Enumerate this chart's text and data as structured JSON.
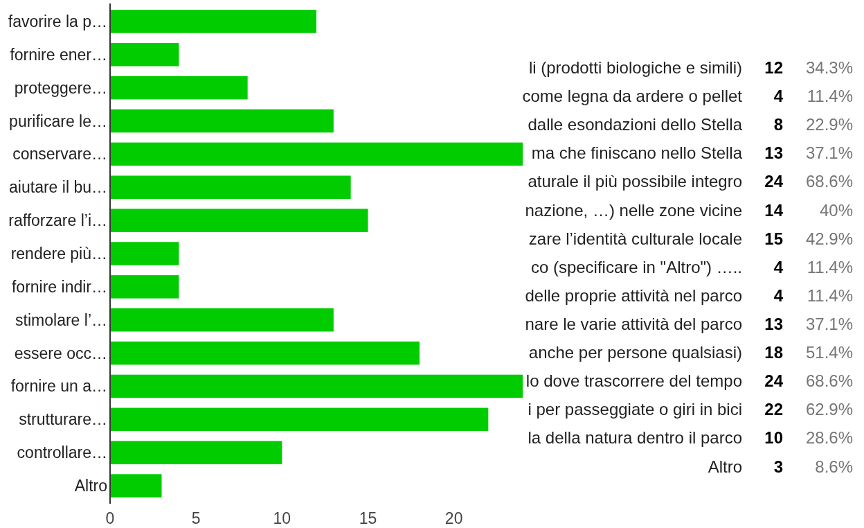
{
  "chart_data": [
    {
      "type": "bar",
      "orientation": "horizontal",
      "categories": [
        "favorire la p…",
        "fornire ener…",
        "proteggere…",
        "purificare le…",
        "conservare…",
        "aiutare il bu…",
        "rafforzare l’i…",
        "rendere più…",
        "fornire indir…",
        "stimolare l’…",
        "essere occ…",
        "fornire un a…",
        "strutturare…",
        "controllare…",
        "Altro"
      ],
      "values": [
        12,
        4,
        8,
        13,
        24,
        14,
        15,
        4,
        4,
        13,
        18,
        24,
        22,
        10,
        3
      ],
      "color": "#00cc00",
      "xlim": [
        0,
        24
      ],
      "xticks": [
        0,
        5,
        10,
        15,
        20
      ]
    },
    {
      "type": "other",
      "data_labels": true,
      "categories": [
        "li (prodotti biologiche e simili)",
        "come legna da ardere o pellet",
        "dalle esondazioni dello Stella",
        "ma che finiscano nello Stella",
        "aturale il più possibile integro",
        "nazione, …) nelle zone vicine",
        "zare l’identità culturale locale",
        "co (specificare in \"Altro\") …..",
        "delle proprie attività nel parco",
        "nare le varie attività del parco",
        "anche per persone qualsiasi)",
        "lo dove trascorrere del tempo",
        "i per passeggiate o giri in bici",
        "la della natura dentro il parco",
        "Altro"
      ],
      "series": [
        {
          "color": "#000000",
          "values": [
            12,
            4,
            8,
            13,
            24,
            14,
            15,
            4,
            4,
            13,
            18,
            24,
            22,
            10,
            3
          ]
        },
        {
          "color": "#757575",
          "values": [
            34.3,
            11.4,
            22.9,
            37.1,
            68.6,
            40,
            42.9,
            11.4,
            11.4,
            37.1,
            51.4,
            68.6,
            62.9,
            28.6,
            8.6
          ],
          "value_labels": [
            "34.3%",
            "11.4%",
            "22.9%",
            "37.1%",
            "68.6%",
            "40%",
            "42.9%",
            "11.4%",
            "11.4%",
            "37.1%",
            "51.4%",
            "68.6%",
            "62.9%",
            "28.6%",
            "8.6%"
          ]
        }
      ]
    }
  ]
}
